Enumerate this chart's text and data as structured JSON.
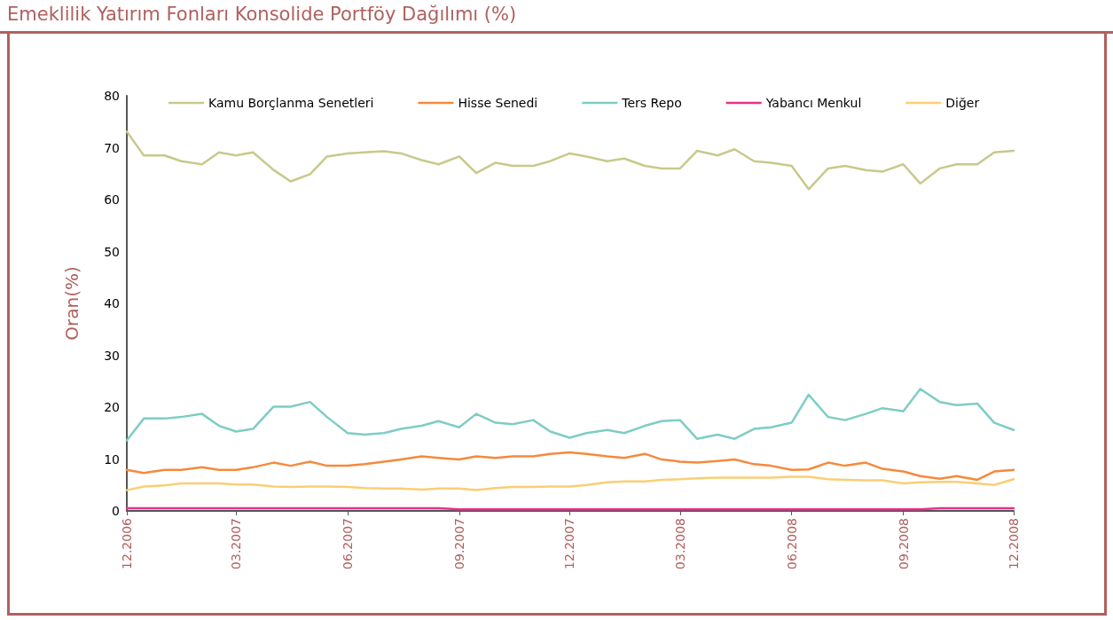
{
  "chart_data": {
    "type": "line",
    "title": "Emeklilik Yatırım Fonları Konsolide Portföy Dağılımı (%)",
    "ylabel": "Oran(%)",
    "x": [
      "2006-12-01",
      "2006-12-15",
      "2007-01-01",
      "2007-01-15",
      "2007-02-01",
      "2007-02-15",
      "2007-03-01",
      "2007-03-15",
      "2007-04-01",
      "2007-04-15",
      "2007-05-01",
      "2007-05-15",
      "2007-06-01",
      "2007-06-15",
      "2007-07-01",
      "2007-07-15",
      "2007-08-01",
      "2007-08-15",
      "2007-09-01",
      "2007-09-15",
      "2007-10-01",
      "2007-10-15",
      "2007-11-01",
      "2007-11-15",
      "2007-12-01",
      "2007-12-15",
      "2008-01-01",
      "2008-01-15",
      "2008-02-01",
      "2008-02-15",
      "2008-03-01",
      "2008-03-15",
      "2008-04-01",
      "2008-04-15",
      "2008-05-01",
      "2008-05-15",
      "2008-06-01",
      "2008-06-15",
      "2008-07-01",
      "2008-07-15",
      "2008-08-01",
      "2008-08-15",
      "2008-09-01",
      "2008-09-15",
      "2008-10-01",
      "2008-10-15",
      "2008-11-01",
      "2008-11-15",
      "2008-12-01"
    ],
    "series": [
      {
        "name": "Kamu Borçlanma Senetleri",
        "color": "#c8c98a",
        "values": [
          73.1,
          68.5,
          68.5,
          67.4,
          66.8,
          69.1,
          68.5,
          69.1,
          65.7,
          63.5,
          64.9,
          68.3,
          68.9,
          69.1,
          69.3,
          68.9,
          67.6,
          66.8,
          68.3,
          65.1,
          67.1,
          66.5,
          66.5,
          67.4,
          68.9,
          68.3,
          67.4,
          67.9,
          66.5,
          66.0,
          66.0,
          69.4,
          68.5,
          69.7,
          67.4,
          67.1,
          66.5,
          62.0,
          66.0,
          66.5,
          65.7,
          65.4,
          66.8,
          63.1,
          66.0,
          66.8,
          66.8,
          69.1,
          69.4
        ]
      },
      {
        "name": "Hisse Senedi",
        "color": "#f58a3c",
        "values": [
          7.9,
          7.3,
          7.9,
          7.9,
          8.4,
          7.9,
          7.9,
          8.4,
          9.3,
          8.7,
          9.5,
          8.7,
          8.7,
          9.0,
          9.5,
          9.9,
          10.5,
          10.2,
          9.9,
          10.5,
          10.2,
          10.5,
          10.5,
          11.0,
          11.3,
          11.0,
          10.5,
          10.2,
          11.0,
          9.9,
          9.5,
          9.3,
          9.6,
          9.9,
          9.0,
          8.7,
          7.9,
          8.0,
          9.3,
          8.7,
          9.3,
          8.1,
          7.6,
          6.7,
          6.2,
          6.7,
          6.0,
          7.6,
          7.9
        ]
      },
      {
        "name": "Ters Repo",
        "color": "#7ecdc4",
        "values": [
          13.6,
          17.8,
          17.8,
          18.1,
          18.7,
          16.4,
          15.3,
          15.8,
          20.1,
          20.1,
          21.0,
          18.1,
          15.0,
          14.7,
          15.0,
          15.8,
          16.4,
          17.3,
          16.1,
          18.7,
          17.0,
          16.7,
          17.5,
          15.3,
          14.1,
          15.0,
          15.6,
          15.0,
          16.4,
          17.3,
          17.5,
          13.9,
          14.7,
          13.9,
          15.8,
          16.1,
          17.0,
          22.4,
          18.1,
          17.5,
          18.7,
          19.8,
          19.2,
          23.5,
          21.0,
          20.4,
          20.7,
          17.0,
          15.6
        ]
      },
      {
        "name": "Yabancı Menkul",
        "color": "#e8308c",
        "values": [
          0.5,
          0.5,
          0.5,
          0.5,
          0.5,
          0.5,
          0.5,
          0.5,
          0.5,
          0.5,
          0.5,
          0.5,
          0.5,
          0.5,
          0.5,
          0.5,
          0.5,
          0.5,
          0.3,
          0.3,
          0.3,
          0.3,
          0.3,
          0.3,
          0.3,
          0.3,
          0.3,
          0.3,
          0.3,
          0.3,
          0.3,
          0.3,
          0.3,
          0.3,
          0.3,
          0.3,
          0.3,
          0.3,
          0.3,
          0.3,
          0.3,
          0.3,
          0.3,
          0.3,
          0.5,
          0.5,
          0.5,
          0.5,
          0.5
        ]
      },
      {
        "name": "Diğer",
        "color": "#fbce74",
        "values": [
          4.0,
          4.7,
          4.9,
          5.3,
          5.3,
          5.3,
          5.1,
          5.1,
          4.7,
          4.6,
          4.7,
          4.7,
          4.6,
          4.4,
          4.3,
          4.3,
          4.1,
          4.3,
          4.3,
          4.0,
          4.4,
          4.6,
          4.6,
          4.7,
          4.7,
          5.0,
          5.5,
          5.7,
          5.7,
          6.0,
          6.1,
          6.3,
          6.4,
          6.4,
          6.4,
          6.4,
          6.6,
          6.6,
          6.1,
          6.0,
          5.9,
          5.9,
          5.3,
          5.5,
          5.6,
          5.6,
          5.3,
          5.0,
          6.1
        ]
      }
    ],
    "xlim": [
      "2006-12-01",
      "2008-12-01"
    ],
    "xticks": [
      {
        "value": "2006-12-01",
        "label": "12.2006"
      },
      {
        "value": "2007-03-01",
        "label": "03.2007"
      },
      {
        "value": "2007-06-01",
        "label": "06.2007"
      },
      {
        "value": "2007-09-01",
        "label": "09.2007"
      },
      {
        "value": "2007-12-01",
        "label": "12.2007"
      },
      {
        "value": "2008-03-01",
        "label": "03.2008"
      },
      {
        "value": "2008-06-01",
        "label": "06.2008"
      },
      {
        "value": "2008-09-01",
        "label": "09.2008"
      },
      {
        "value": "2008-12-01",
        "label": "12.2008"
      }
    ],
    "ylim": [
      0,
      80
    ],
    "yticks": [
      0,
      10,
      20,
      30,
      40,
      50,
      60,
      70,
      80
    ],
    "grid": false,
    "legend": "top",
    "marker": "none",
    "line_style": "solid"
  }
}
